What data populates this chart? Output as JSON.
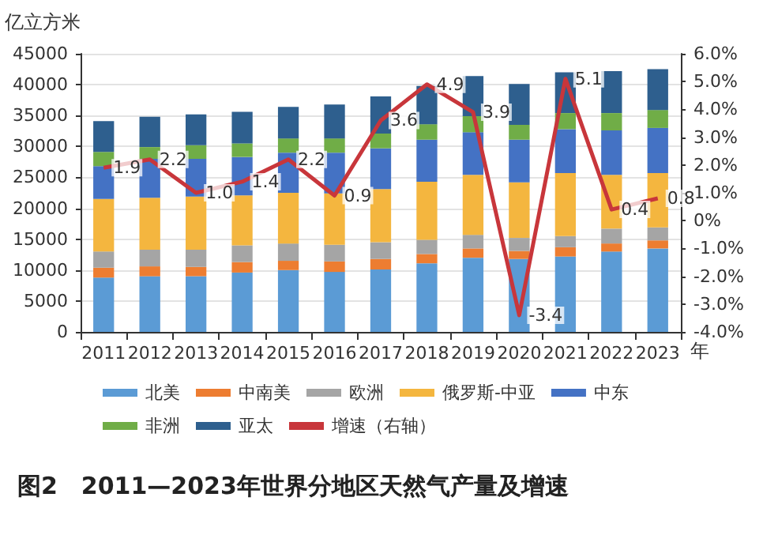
{
  "chart_data": {
    "type": "bar",
    "title": "图2　2011—2023年世界分地区天然气产量及增速",
    "ylabel": "亿立方米",
    "xlabel": "年",
    "categories": [
      "2011",
      "2012",
      "2013",
      "2014",
      "2015",
      "2016",
      "2017",
      "2018",
      "2019",
      "2020",
      "2021",
      "2022",
      "2023"
    ],
    "stacked": true,
    "series": [
      {
        "name": "北美",
        "color": "#5b9bd5",
        "values": [
          8800,
          9000,
          9000,
          9600,
          10000,
          9700,
          10100,
          11100,
          12000,
          11800,
          12200,
          13000,
          13500
        ]
      },
      {
        "name": "中南美",
        "color": "#ed7d31",
        "values": [
          1600,
          1600,
          1500,
          1700,
          1500,
          1700,
          1700,
          1500,
          1500,
          1300,
          1500,
          1300,
          1300
        ]
      },
      {
        "name": "欧洲",
        "color": "#a5a5a5",
        "values": [
          2600,
          2700,
          2800,
          2700,
          2800,
          2700,
          2700,
          2300,
          2200,
          2100,
          1800,
          2400,
          2100
        ]
      },
      {
        "name": "俄罗斯-中亚",
        "color": "#f4b63f",
        "values": [
          8500,
          8400,
          8600,
          8100,
          8200,
          8300,
          8600,
          9400,
          9700,
          9000,
          10200,
          8700,
          8800
        ]
      },
      {
        "name": "中东",
        "color": "#4472c4",
        "values": [
          5300,
          6300,
          6100,
          6200,
          6500,
          6600,
          6600,
          6800,
          6900,
          6900,
          7100,
          7200,
          7300
        ]
      },
      {
        "name": "非洲",
        "color": "#70ad47",
        "values": [
          2300,
          1900,
          2200,
          2200,
          2300,
          2300,
          2400,
          2500,
          2600,
          2400,
          2600,
          2800,
          2900
        ]
      },
      {
        "name": "亚太",
        "color": "#2e5f8e",
        "values": [
          5000,
          4900,
          5000,
          5100,
          5100,
          5500,
          6000,
          6200,
          6500,
          6600,
          6600,
          6800,
          6600
        ]
      },
      {
        "name": "增速（右轴）",
        "type": "line",
        "axis": "y2",
        "color": "#c8363b",
        "marker": "none",
        "line_style": "solid",
        "value_labels": [
          "1.9",
          "2.2",
          "1.0",
          "1.4",
          "2.2",
          "0.9",
          "3.6",
          "4.9",
          "3.9",
          "-3.4",
          "5.1",
          "0.4",
          "0.8"
        ],
        "values": [
          1.9,
          2.2,
          1.0,
          1.4,
          2.2,
          0.9,
          3.6,
          4.9,
          3.9,
          -3.4,
          5.1,
          0.4,
          0.8
        ]
      }
    ],
    "ylim": [
      0,
      45000
    ],
    "yticks": [
      0,
      5000,
      10000,
      15000,
      20000,
      25000,
      30000,
      35000,
      40000,
      45000
    ],
    "y2lim": [
      -4,
      6
    ],
    "y2ticks": [
      {
        "value": -4,
        "label": "-4.0%"
      },
      {
        "value": -3,
        "label": "-3.0%"
      },
      {
        "value": -2,
        "label": "-2.0%"
      },
      {
        "value": -1,
        "label": "-1.0%"
      },
      {
        "value": 0,
        "label": "0%"
      },
      {
        "value": 1,
        "label": "1.0%"
      },
      {
        "value": 2,
        "label": "2.0%"
      },
      {
        "value": 3,
        "label": "3.0%"
      },
      {
        "value": 4,
        "label": "4.0%"
      },
      {
        "value": 5,
        "label": "5.0%"
      },
      {
        "value": 6,
        "label": "6.0%"
      }
    ],
    "grid": "y",
    "legend": "bottom"
  }
}
